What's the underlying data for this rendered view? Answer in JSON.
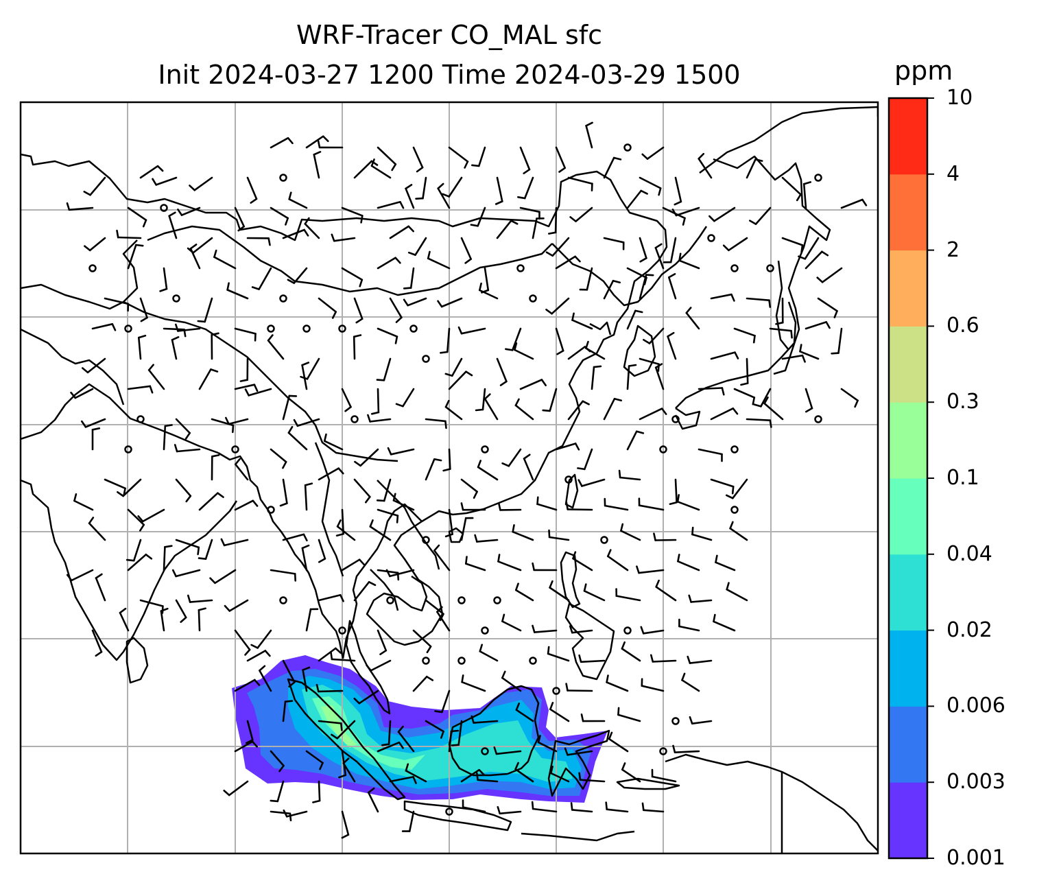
{
  "title": {
    "line1": "WRF-Tracer CO_MAL sfc",
    "line2": "Init 2024-03-27 1200 Time 2024-03-29 1500"
  },
  "colorbar": {
    "unit": "ppm",
    "levels": [
      "0.001",
      "0.003",
      "0.006",
      "0.02",
      "0.04",
      "0.1",
      "0.3",
      "0.6",
      "2",
      "4",
      "10"
    ],
    "colors": [
      "#6633ff",
      "#3377f2",
      "#00b2ee",
      "#2ee0d4",
      "#66ffbb",
      "#99ff99",
      "#cce085",
      "#ffaf5c",
      "#ff7038",
      "#ff2b16"
    ]
  },
  "map": {
    "gridlines": true,
    "frame_color": "#000000",
    "grid_color": "#b0b0b0",
    "coast_color": "#000000"
  }
}
